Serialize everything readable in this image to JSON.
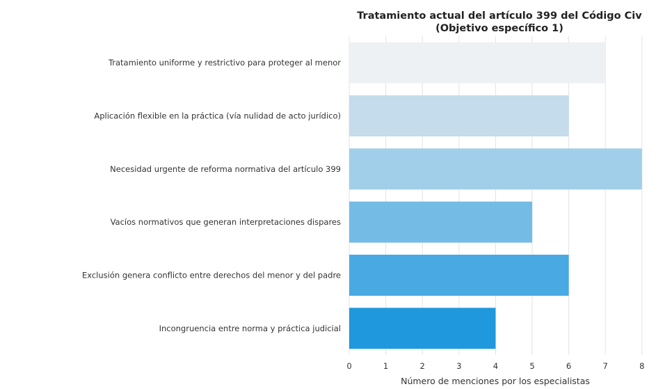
{
  "chart_data": {
    "type": "bar",
    "orientation": "horizontal",
    "title_lines": [
      "Tratamiento actual del artículo 399 del Código Civ",
      "(Objetivo específico 1)"
    ],
    "categories": [
      "Tratamiento uniforme y restrictivo para proteger al menor",
      "Aplicación flexible en la práctica (vía nulidad de acto jurídico)",
      "Necesidad urgente de reforma normativa del artículo 399",
      "Vacíos normativos que generan interpretaciones dispares",
      "Exclusión genera conflicto entre derechos del menor y del padre",
      "Incongruencia entre norma y práctica judicial"
    ],
    "values": [
      7,
      6,
      8,
      5,
      6,
      4
    ],
    "colors": [
      "#eef1f4",
      "#c4dcec",
      "#a1cfea",
      "#74bce6",
      "#49a9e3",
      "#1f98dd"
    ],
    "xlabel": "Número de menciones por los especialistas",
    "xlim": [
      0,
      8.5
    ],
    "xticks": [
      0,
      1,
      2,
      3,
      4,
      5,
      6,
      7,
      8
    ],
    "grid": "vertical"
  }
}
